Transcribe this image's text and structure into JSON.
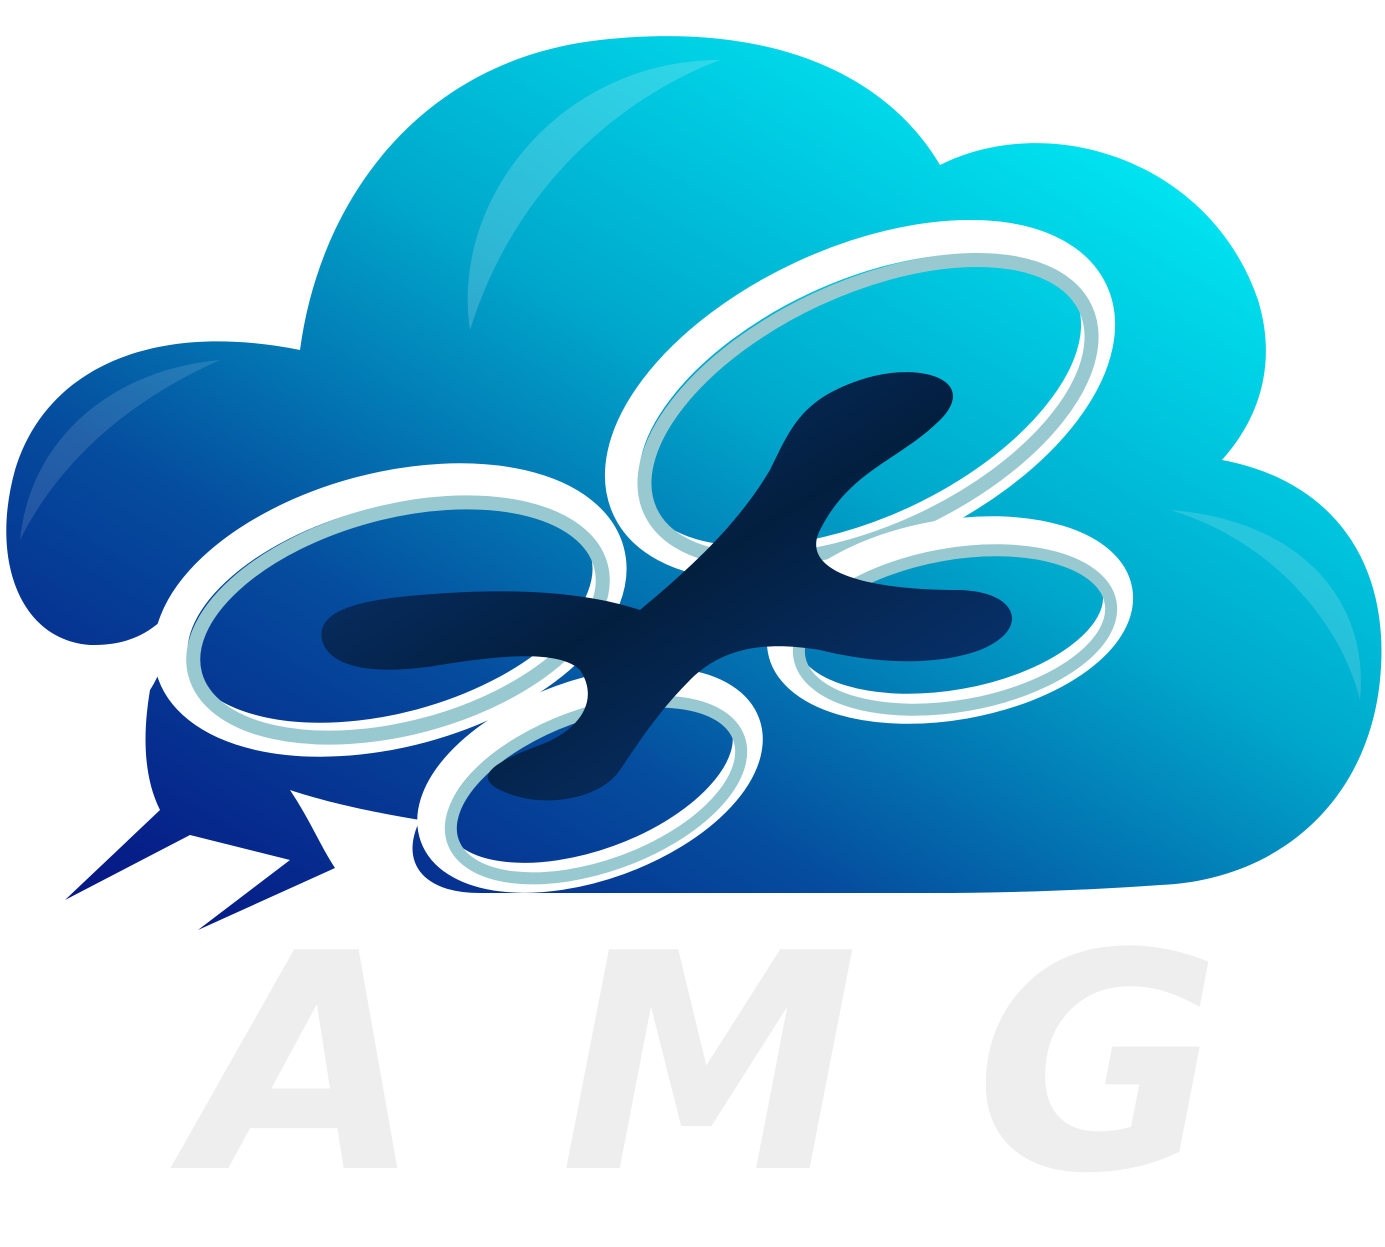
{
  "logo": {
    "wordmark": [
      "A",
      "M",
      "G"
    ],
    "icon_name": "cloud-drone-icon"
  },
  "colors": {
    "cloud_light": "#00f0f8",
    "cloud_mid": "#00a8cc",
    "cloud_dark": "#061a86",
    "drone_body": "#031f3f",
    "rotor_shadow": "#99c9d0",
    "rotor_white": "#ffffff",
    "wordmark": "#eeeeee"
  }
}
